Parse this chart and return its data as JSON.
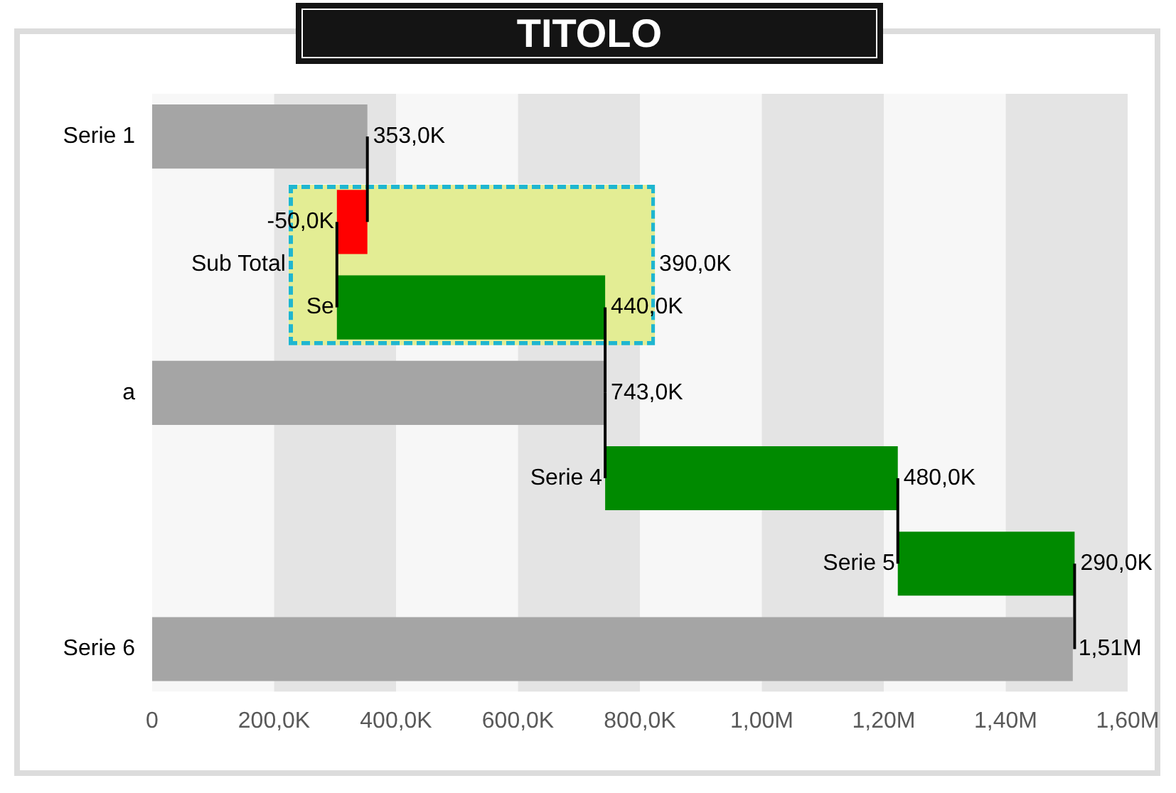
{
  "chart_data": {
    "type": "bar",
    "title": "TITOLO",
    "orientation": "horizontal",
    "categories": [
      "Serie 1",
      null,
      "Se",
      "a",
      "Serie 4",
      "Serie 5",
      "Serie 6"
    ],
    "values": [
      353000,
      -50000,
      440000,
      743000,
      480000,
      290000,
      1510000
    ],
    "base": [
      0,
      353000,
      303000,
      0,
      743000,
      1223000,
      0
    ],
    "colors": [
      "#a5a5a5",
      "#ff0000",
      "#008a00",
      "#a5a5a5",
      "#008a00",
      "#008a00",
      "#a5a5a5"
    ],
    "value_labels": [
      "353,0K",
      "-50,0K",
      "440,0K",
      "743,0K",
      "480,0K",
      "290,0K",
      "1,51M"
    ],
    "annotations": [
      "Sub Total",
      "390,0K"
    ],
    "xlim": [
      0,
      1600000
    ],
    "xticks": [
      {
        "value": 0,
        "label": "0"
      },
      {
        "value": 200000,
        "label": "200,0K"
      },
      {
        "value": 400000,
        "label": "400,0K"
      },
      {
        "value": 600000,
        "label": "600,0K"
      },
      {
        "value": 800000,
        "label": "800,0K"
      },
      {
        "value": 1000000,
        "label": "1,00M"
      },
      {
        "value": 1200000,
        "label": "1,20M"
      },
      {
        "value": 1400000,
        "label": "1,40M"
      },
      {
        "value": 1600000,
        "label": "1,60M"
      }
    ],
    "legend": false
  }
}
